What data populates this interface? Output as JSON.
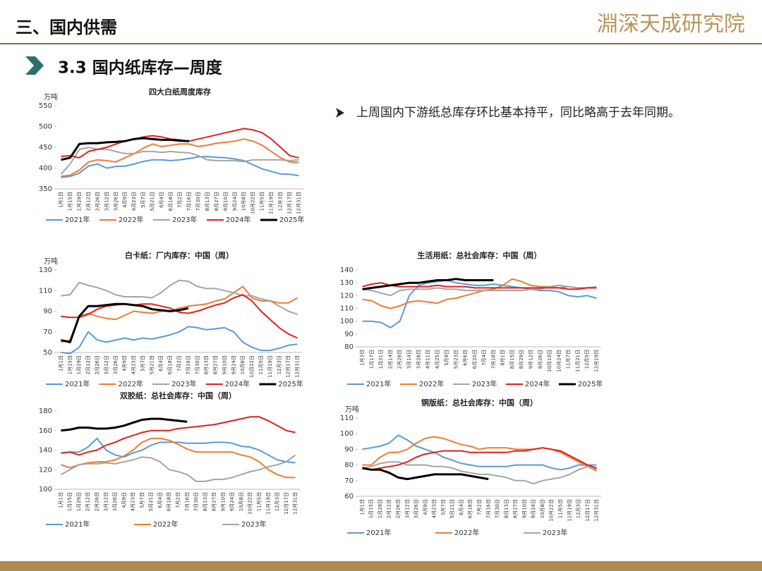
{
  "header": {
    "section": "三、国内供需",
    "logo": "淵深天成研究院",
    "subtitle": "3.3 国内纸库存—周度",
    "bullet": "上周国内下游纸总库存环比基本持平，同比略高于去年同期。"
  },
  "chart_data": [
    {
      "type": "line",
      "title": "四大白纸周度库存",
      "ylabel": "万吨",
      "categories": [
        "1月1日",
        "1月15日",
        "1月29日",
        "2月12日",
        "2月26日",
        "3月12日",
        "3月26日",
        "4月9日",
        "4月23日",
        "5月7日",
        "5月21日",
        "6月4日",
        "6月18日",
        "7月2日",
        "7月16日",
        "7月30日",
        "8月13日",
        "8月27日",
        "9月10日",
        "9月24日",
        "10月8日",
        "10月22日",
        "11月5日",
        "11月19日",
        "12月3日",
        "12月17日",
        "12月31日"
      ],
      "ylim": [
        350,
        550
      ],
      "yticks": [
        350,
        400,
        450,
        500,
        550
      ],
      "series": [
        {
          "name": "2021年",
          "color": "#5b9bd5",
          "values": [
            378,
            380,
            388,
            405,
            410,
            400,
            404,
            405,
            410,
            416,
            420,
            420,
            418,
            420,
            423,
            427,
            428,
            426,
            425,
            422,
            418,
            408,
            398,
            392,
            386,
            385,
            382
          ]
        },
        {
          "name": "2022年",
          "color": "#ed7d31",
          "values": [
            380,
            383,
            395,
            415,
            420,
            418,
            415,
            425,
            435,
            448,
            458,
            452,
            455,
            458,
            458,
            452,
            455,
            460,
            462,
            465,
            470,
            465,
            455,
            440,
            425,
            415,
            414
          ]
        },
        {
          "name": "2023年",
          "color": "#a5a5a5",
          "values": [
            385,
            410,
            445,
            450,
            445,
            445,
            440,
            435,
            435,
            440,
            440,
            438,
            440,
            438,
            437,
            430,
            420,
            418,
            418,
            418,
            416,
            420,
            420,
            420,
            420,
            418,
            420
          ]
        },
        {
          "name": "2024年",
          "color": "#e02020",
          "values": [
            428,
            430,
            425,
            440,
            445,
            450,
            458,
            465,
            470,
            475,
            478,
            475,
            470,
            468,
            465,
            470,
            475,
            480,
            485,
            490,
            495,
            492,
            485,
            470,
            450,
            430,
            425
          ]
        },
        {
          "name": "2025年",
          "color": "#000000",
          "values": [
            420,
            425,
            458,
            460,
            460,
            462,
            463,
            465,
            470,
            472,
            470,
            468,
            468,
            466,
            465,
            null,
            null,
            null,
            null,
            null,
            null,
            null,
            null,
            null,
            null,
            null,
            null
          ]
        }
      ]
    },
    {
      "type": "line",
      "title": "白卡纸：厂内库存：中国（周）",
      "ylabel": "万吨",
      "categories": [
        "1月1日",
        "1月15日",
        "1月29日",
        "2月12日",
        "2月26日",
        "3月12日",
        "3月26日",
        "4月9日",
        "4月23日",
        "5月7日",
        "5月21日",
        "6月4日",
        "6月18日",
        "7月2日",
        "7月16日",
        "7月30日",
        "8月13日",
        "8月27日",
        "9月10日",
        "9月24日",
        "10月8日",
        "10月22日",
        "11月5日",
        "11月19日",
        "12月3日",
        "12月17日",
        "12月31日"
      ],
      "ylim": [
        50,
        130
      ],
      "yticks": [
        50,
        70,
        90,
        110,
        130
      ],
      "series": [
        {
          "name": "2021年",
          "color": "#5b9bd5",
          "values": [
            50,
            49,
            55,
            70,
            62,
            60,
            62,
            64,
            62,
            64,
            63,
            65,
            67,
            70,
            75,
            74,
            72,
            73,
            74,
            70,
            60,
            55,
            52,
            52,
            54,
            57,
            58
          ]
        },
        {
          "name": "2022年",
          "color": "#ed7d31",
          "values": [
            60,
            62,
            85,
            88,
            85,
            83,
            82,
            86,
            90,
            89,
            88,
            90,
            90,
            93,
            95,
            96,
            97,
            100,
            102,
            108,
            114,
            103,
            100,
            100,
            98,
            98,
            103
          ]
        },
        {
          "name": "2023年",
          "color": "#a5a5a5",
          "values": [
            105,
            106,
            118,
            115,
            113,
            110,
            106,
            104,
            104,
            104,
            103,
            108,
            115,
            120,
            119,
            114,
            112,
            112,
            110,
            108,
            105,
            105,
            102,
            100,
            95,
            90,
            87
          ]
        },
        {
          "name": "2024年",
          "color": "#e02020",
          "values": [
            85,
            84,
            84,
            87,
            92,
            95,
            96,
            97,
            96,
            97,
            97,
            95,
            93,
            89,
            88,
            90,
            93,
            96,
            98,
            103,
            106,
            100,
            90,
            82,
            74,
            68,
            64
          ]
        },
        {
          "name": "2025年",
          "color": "#000000",
          "values": [
            62,
            60,
            85,
            95,
            95,
            96,
            97,
            97,
            96,
            95,
            92,
            91,
            90,
            91,
            93,
            null,
            null,
            null,
            null,
            null,
            null,
            null,
            null,
            null,
            null,
            null,
            null
          ]
        }
      ]
    },
    {
      "type": "line",
      "title": "生活用纸：总社会库存：中国（周）",
      "categories": [
        "1月3日",
        "1月17日",
        "1月31日",
        "2月14日",
        "2月28日",
        "3月14日",
        "3月28日",
        "4月11日",
        "4月25日",
        "5月9日",
        "5月23日",
        "6月6日",
        "6月20日",
        "7月4日",
        "7月18日",
        "8月1日",
        "8月15日",
        "8月29日",
        "9月12日",
        "9月26日",
        "10月10日",
        "10月24日",
        "11月7日",
        "11月21日",
        "12月5日",
        "12月19日"
      ],
      "ylim": [
        80,
        140
      ],
      "yticks": [
        80,
        90,
        100,
        110,
        120,
        130,
        140
      ],
      "series": [
        {
          "name": "2021年",
          "color": "#5b9bd5",
          "values": [
            100,
            100,
            99,
            95,
            100,
            120,
            128,
            130,
            131,
            132,
            130,
            129,
            128,
            128,
            129,
            128,
            127,
            126,
            125,
            124,
            124,
            123,
            120,
            119,
            120,
            118
          ]
        },
        {
          "name": "2022年",
          "color": "#ed7d31",
          "values": [
            117,
            116,
            112,
            110,
            112,
            115,
            116,
            115,
            114,
            117,
            118,
            120,
            122,
            124,
            125,
            128,
            133,
            131,
            128,
            127,
            127,
            126,
            127,
            126,
            126,
            126
          ]
        },
        {
          "name": "2023年",
          "color": "#a5a5a5",
          "values": [
            125,
            124,
            122,
            120,
            124,
            125,
            125,
            125,
            126,
            125,
            125,
            124,
            124,
            124,
            124,
            124,
            124,
            124,
            125,
            125,
            127,
            128,
            127,
            126,
            126,
            127
          ]
        },
        {
          "name": "2024年",
          "color": "#e02020",
          "values": [
            127,
            129,
            130,
            128,
            127,
            127,
            127,
            127,
            128,
            127,
            127,
            127,
            126,
            126,
            126,
            126,
            126,
            126,
            126,
            126,
            126,
            126,
            125,
            125,
            126,
            126
          ]
        },
        {
          "name": "2025年",
          "color": "#000000",
          "values": [
            125,
            126,
            127,
            128,
            129,
            130,
            130,
            131,
            132,
            132,
            133,
            132,
            132,
            132,
            132,
            null,
            null,
            null,
            null,
            null,
            null,
            null,
            null,
            null,
            null,
            null
          ]
        }
      ]
    },
    {
      "type": "line",
      "title": "双胶纸：总社会库存：中国（周）",
      "categories": [
        "1月1日",
        "1月15日",
        "1月29日",
        "2月12日",
        "2月26日",
        "3月12日",
        "3月26日",
        "4月9日",
        "4月23日",
        "5月7日",
        "5月21日",
        "6月4日",
        "6月18日",
        "7月2日",
        "7月16日",
        "7月30日",
        "8月13日",
        "8月27日",
        "9月10日",
        "9月24日",
        "10月8日",
        "10月22日",
        "11月5日",
        "11月19日",
        "12月3日",
        "12月17日",
        "12月31日"
      ],
      "ylim": [
        100,
        180
      ],
      "yticks": [
        100,
        120,
        140,
        160,
        180
      ],
      "series": [
        {
          "name": "2021年",
          "color": "#5b9bd5",
          "values": [
            137,
            138,
            138,
            143,
            152,
            140,
            135,
            133,
            137,
            140,
            145,
            148,
            148,
            148,
            147,
            147,
            147,
            148,
            148,
            147,
            144,
            143,
            140,
            135,
            130,
            128,
            127
          ]
        },
        {
          "name": "2022年",
          "color": "#ed7d31",
          "values": [
            125,
            122,
            125,
            127,
            128,
            128,
            130,
            134,
            140,
            148,
            152,
            152,
            150,
            146,
            141,
            138,
            138,
            138,
            138,
            138,
            135,
            133,
            128,
            120,
            115,
            112,
            112
          ]
        },
        {
          "name": "2023年",
          "color": "#a5a5a5",
          "values": [
            115,
            120,
            125,
            126,
            126,
            127,
            126,
            128,
            130,
            133,
            132,
            128,
            120,
            118,
            115,
            108,
            108,
            110,
            110,
            112,
            115,
            118,
            120,
            123,
            125,
            128,
            135
          ]
        },
        {
          "color": "#e02020",
          "values": [
            137,
            138,
            135,
            138,
            140,
            145,
            148,
            152,
            155,
            158,
            160,
            160,
            160,
            162,
            163,
            164,
            165,
            166,
            168,
            170,
            172,
            174,
            174,
            170,
            165,
            160,
            158
          ]
        },
        {
          "color": "#000000",
          "values": [
            160,
            161,
            163,
            163,
            162,
            162,
            163,
            165,
            168,
            171,
            172,
            172,
            171,
            170,
            169,
            null,
            null,
            null,
            null,
            null,
            null,
            null,
            null,
            null,
            null,
            null,
            null
          ]
        }
      ]
    },
    {
      "type": "line",
      "title": "铜版纸：总社会库存：中国（周）",
      "ylabel": "万吨",
      "categories": [
        "1月1日",
        "1月15日",
        "1月29日",
        "2月12日",
        "2月26日",
        "3月12日",
        "3月26日",
        "4月9日",
        "4月23日",
        "5月7日",
        "5月21日",
        "6月4日",
        "6月18日",
        "7月2日",
        "7月16日",
        "7月30日",
        "8月13日",
        "8月27日",
        "9月10日",
        "9月24日",
        "10月8日",
        "10月22日",
        "11月5日",
        "11月19日",
        "12月3日",
        "12月17日",
        "12月31日"
      ],
      "ylim": [
        60,
        110
      ],
      "yticks": [
        60,
        70,
        80,
        90,
        100,
        110
      ],
      "series": [
        {
          "name": "2021年",
          "color": "#5b9bd5",
          "values": [
            90,
            91,
            92,
            94,
            99,
            96,
            92,
            90,
            88,
            85,
            83,
            81,
            80,
            79,
            79,
            79,
            79,
            80,
            80,
            80,
            80,
            78,
            77,
            78,
            80,
            80,
            80
          ]
        },
        {
          "name": "2022年",
          "color": "#ed7d31",
          "values": [
            80,
            80,
            85,
            88,
            88,
            90,
            94,
            97,
            98,
            97,
            95,
            93,
            92,
            90,
            91,
            91,
            91,
            90,
            90,
            90,
            91,
            90,
            88,
            85,
            82,
            79,
            77
          ]
        },
        {
          "name": "2023年",
          "color": "#a5a5a5",
          "values": [
            78,
            79,
            81,
            82,
            82,
            80,
            80,
            80,
            79,
            79,
            78,
            76,
            75,
            74,
            74,
            73,
            72,
            70,
            70,
            68,
            70,
            71,
            72,
            74,
            77,
            79,
            76
          ]
        },
        {
          "color": "#e02020",
          "values": [
            78,
            77,
            78,
            79,
            80,
            82,
            85,
            87,
            88,
            89,
            89,
            89,
            88,
            88,
            88,
            88,
            88,
            89,
            89,
            90,
            91,
            90,
            89,
            86,
            83,
            80,
            78
          ]
        },
        {
          "color": "#000000",
          "values": [
            78,
            77,
            77,
            75,
            72,
            71,
            72,
            73,
            74,
            74,
            74,
            74,
            73,
            72,
            71,
            null,
            null,
            null,
            null,
            null,
            null,
            null,
            null,
            null,
            null,
            null,
            null
          ]
        }
      ]
    }
  ]
}
